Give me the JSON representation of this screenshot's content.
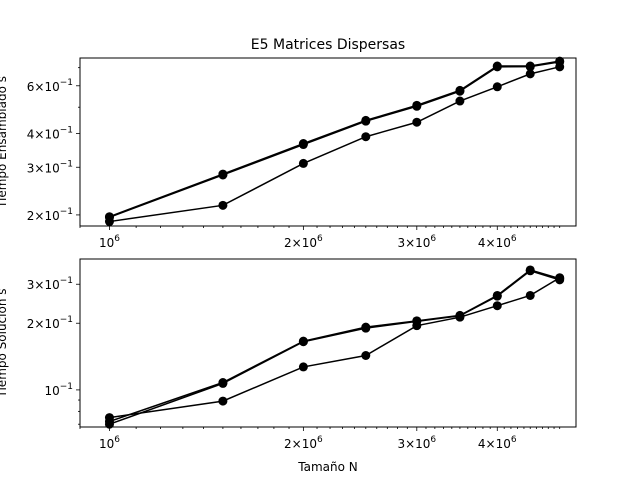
{
  "chart_data": [
    {
      "type": "line",
      "title": "E5 Matrices Dispersas",
      "xlabel": "",
      "ylabel": "Tiempo Ensamblado s",
      "xscale": "log",
      "yscale": "log",
      "xlim": [
        900000,
        5300000
      ],
      "ylim": [
        0.182,
        0.76
      ],
      "grid": false,
      "x_ticks": [
        {
          "value": 1000000,
          "base": "10",
          "exp": "6"
        },
        {
          "value": 2000000,
          "base": "2×10",
          "exp": "6"
        },
        {
          "value": 3000000,
          "base": "3×10",
          "exp": "6"
        },
        {
          "value": 4000000,
          "base": "4×10",
          "exp": "6"
        }
      ],
      "y_ticks": [
        {
          "value": 0.2,
          "base": "2×10",
          "exp": "−1"
        },
        {
          "value": 0.3,
          "base": "3×10",
          "exp": "−1"
        },
        {
          "value": 0.4,
          "base": "4×10",
          "exp": "−1"
        },
        {
          "value": 0.6,
          "base": "6×10",
          "exp": "−1"
        }
      ],
      "x": [
        1000000,
        1500000,
        2000000,
        2500000,
        3000000,
        3500000,
        4000000,
        4500000,
        5000000
      ],
      "series": [
        {
          "values": [
            0.197,
            0.283,
            0.367,
            0.447,
            0.508,
            0.577,
            0.71,
            0.71,
            0.74
          ]
        },
        {
          "values": [
            0.196,
            0.281,
            0.364,
            0.444,
            0.504,
            0.573,
            0.705,
            0.706,
            0.735
          ]
        },
        {
          "values": [
            0.189,
            0.217,
            0.31,
            0.389,
            0.44,
            0.527,
            0.595,
            0.664,
            0.705
          ]
        }
      ]
    },
    {
      "type": "line",
      "title": "",
      "xlabel": "Tamaño N",
      "ylabel": "Tiempo Solución s",
      "xscale": "log",
      "yscale": "log",
      "xlim": [
        900000,
        5300000
      ],
      "ylim": [
        0.068,
        0.39
      ],
      "grid": false,
      "x_ticks": [
        {
          "value": 1000000,
          "base": "10",
          "exp": "6"
        },
        {
          "value": 2000000,
          "base": "2×10",
          "exp": "6"
        },
        {
          "value": 3000000,
          "base": "3×10",
          "exp": "6"
        },
        {
          "value": 4000000,
          "base": "4×10",
          "exp": "6"
        }
      ],
      "y_ticks": [
        {
          "value": 0.1,
          "base": "10",
          "exp": "−1"
        },
        {
          "value": 0.2,
          "base": "2×10",
          "exp": "−1"
        },
        {
          "value": 0.3,
          "base": "3×10",
          "exp": "−1"
        }
      ],
      "x": [
        1000000,
        1500000,
        2000000,
        2500000,
        3000000,
        3500000,
        4000000,
        4500000,
        5000000
      ],
      "series": [
        {
          "values": [
            0.072,
            0.108,
            0.166,
            0.192,
            0.205,
            0.217,
            0.267,
            0.348,
            0.318
          ]
        },
        {
          "values": [
            0.07,
            0.107,
            0.165,
            0.19,
            0.204,
            0.216,
            0.265,
            0.345,
            0.314
          ]
        },
        {
          "values": [
            0.075,
            0.089,
            0.127,
            0.143,
            0.195,
            0.213,
            0.24,
            0.267,
            0.321
          ]
        }
      ]
    }
  ]
}
